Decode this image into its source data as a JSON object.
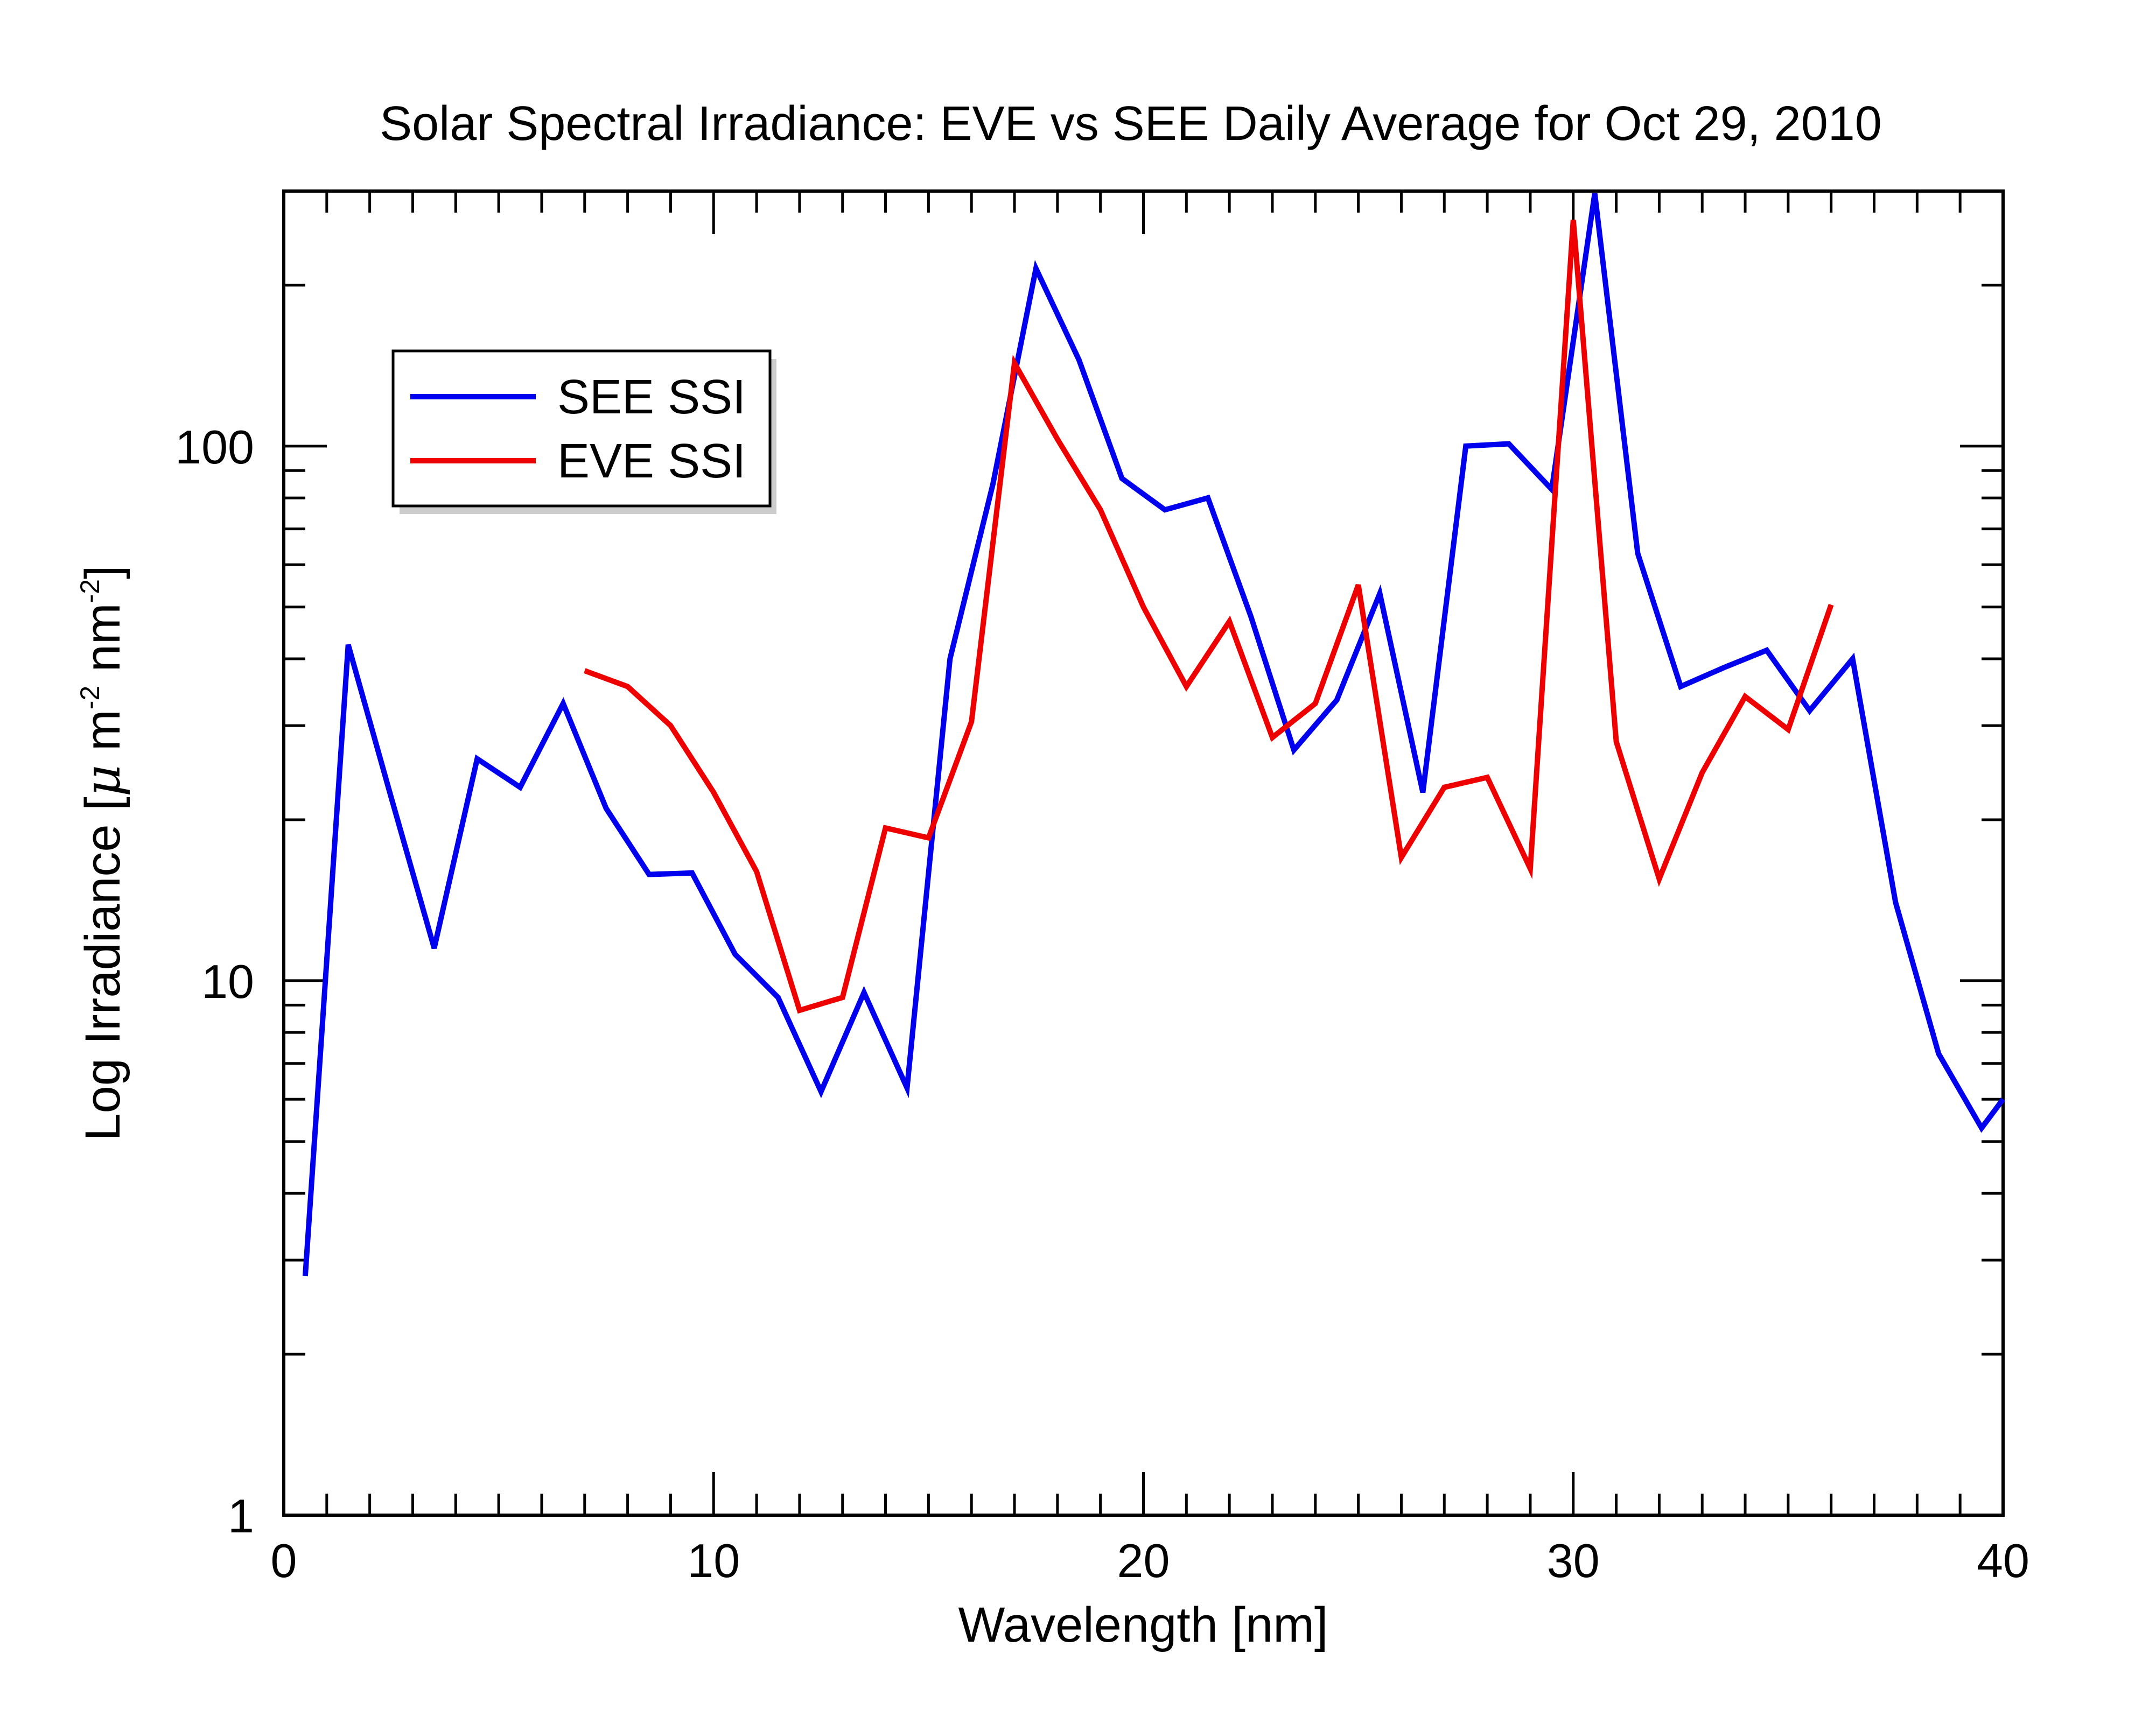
{
  "chart_data": {
    "type": "line",
    "title": "Solar Spectral Irradiance: EVE vs SEE Daily Average for Oct 29, 2010",
    "xlabel": "Wavelength [nm]",
    "ylabel": {
      "prefix": "Log Irradiance [",
      "mu": "μ",
      "m": " m",
      "m_exp": "-2",
      "nm": " nm",
      "nm_exp": "-2",
      "suffix": "]"
    },
    "xlim": [
      0,
      40
    ],
    "ylim": [
      1,
      300
    ],
    "yscale": "log",
    "x_ticks": [
      "0",
      "10",
      "20",
      "30",
      "40"
    ],
    "y_ticks": [
      "1",
      "10",
      "100"
    ],
    "legend_position": "top-left",
    "grid": false,
    "series": [
      {
        "name": "SEE SSI",
        "color": "#0000ee",
        "x": [
          0.5,
          1.5,
          2.5,
          3.5,
          4.5,
          5.5,
          6.5,
          7.5,
          8.5,
          9.5,
          10.5,
          11.5,
          12.5,
          13.5,
          14.5,
          15.5,
          16.5,
          17.5,
          18.5,
          19.5,
          20.5,
          21.5,
          22.5,
          23.5,
          24.5,
          25.5,
          26.5,
          27.5,
          28.5,
          29.5,
          30.5,
          31.5,
          32.5,
          33.5,
          34.5,
          35.5,
          36.5,
          37.5,
          38.5,
          39.5,
          40.0
        ],
        "y": [
          2.8,
          42.5,
          22.0,
          11.5,
          26.0,
          23.0,
          33.0,
          21.0,
          15.8,
          15.9,
          11.2,
          9.3,
          6.2,
          9.5,
          6.3,
          40.0,
          85.0,
          215.0,
          145.0,
          87.0,
          76.0,
          80.0,
          48.0,
          27.0,
          33.5,
          53.0,
          22.5,
          100.0,
          101.0,
          83.0,
          297.0,
          63.0,
          35.5,
          38.5,
          41.5,
          32.0,
          40.0,
          14.0,
          7.3,
          5.3,
          6.0
        ]
      },
      {
        "name": "EVE SSI",
        "color": "#ee0000",
        "x": [
          7,
          8,
          9,
          10,
          11,
          12,
          13,
          14,
          15,
          16,
          17,
          18,
          19,
          20,
          21,
          22,
          23,
          24,
          25,
          26,
          27,
          28,
          29,
          30,
          31,
          32,
          33,
          34,
          35,
          36
        ],
        "y": [
          38.0,
          35.5,
          30.0,
          22.5,
          16.0,
          8.8,
          9.3,
          19.3,
          18.5,
          30.5,
          143.0,
          103.0,
          76.0,
          50.0,
          35.5,
          47.0,
          28.5,
          33.0,
          55.0,
          17.0,
          23.0,
          24.0,
          16.2,
          265.0,
          28.0,
          15.5,
          24.5,
          34.0,
          29.5,
          50.5
        ]
      }
    ]
  }
}
